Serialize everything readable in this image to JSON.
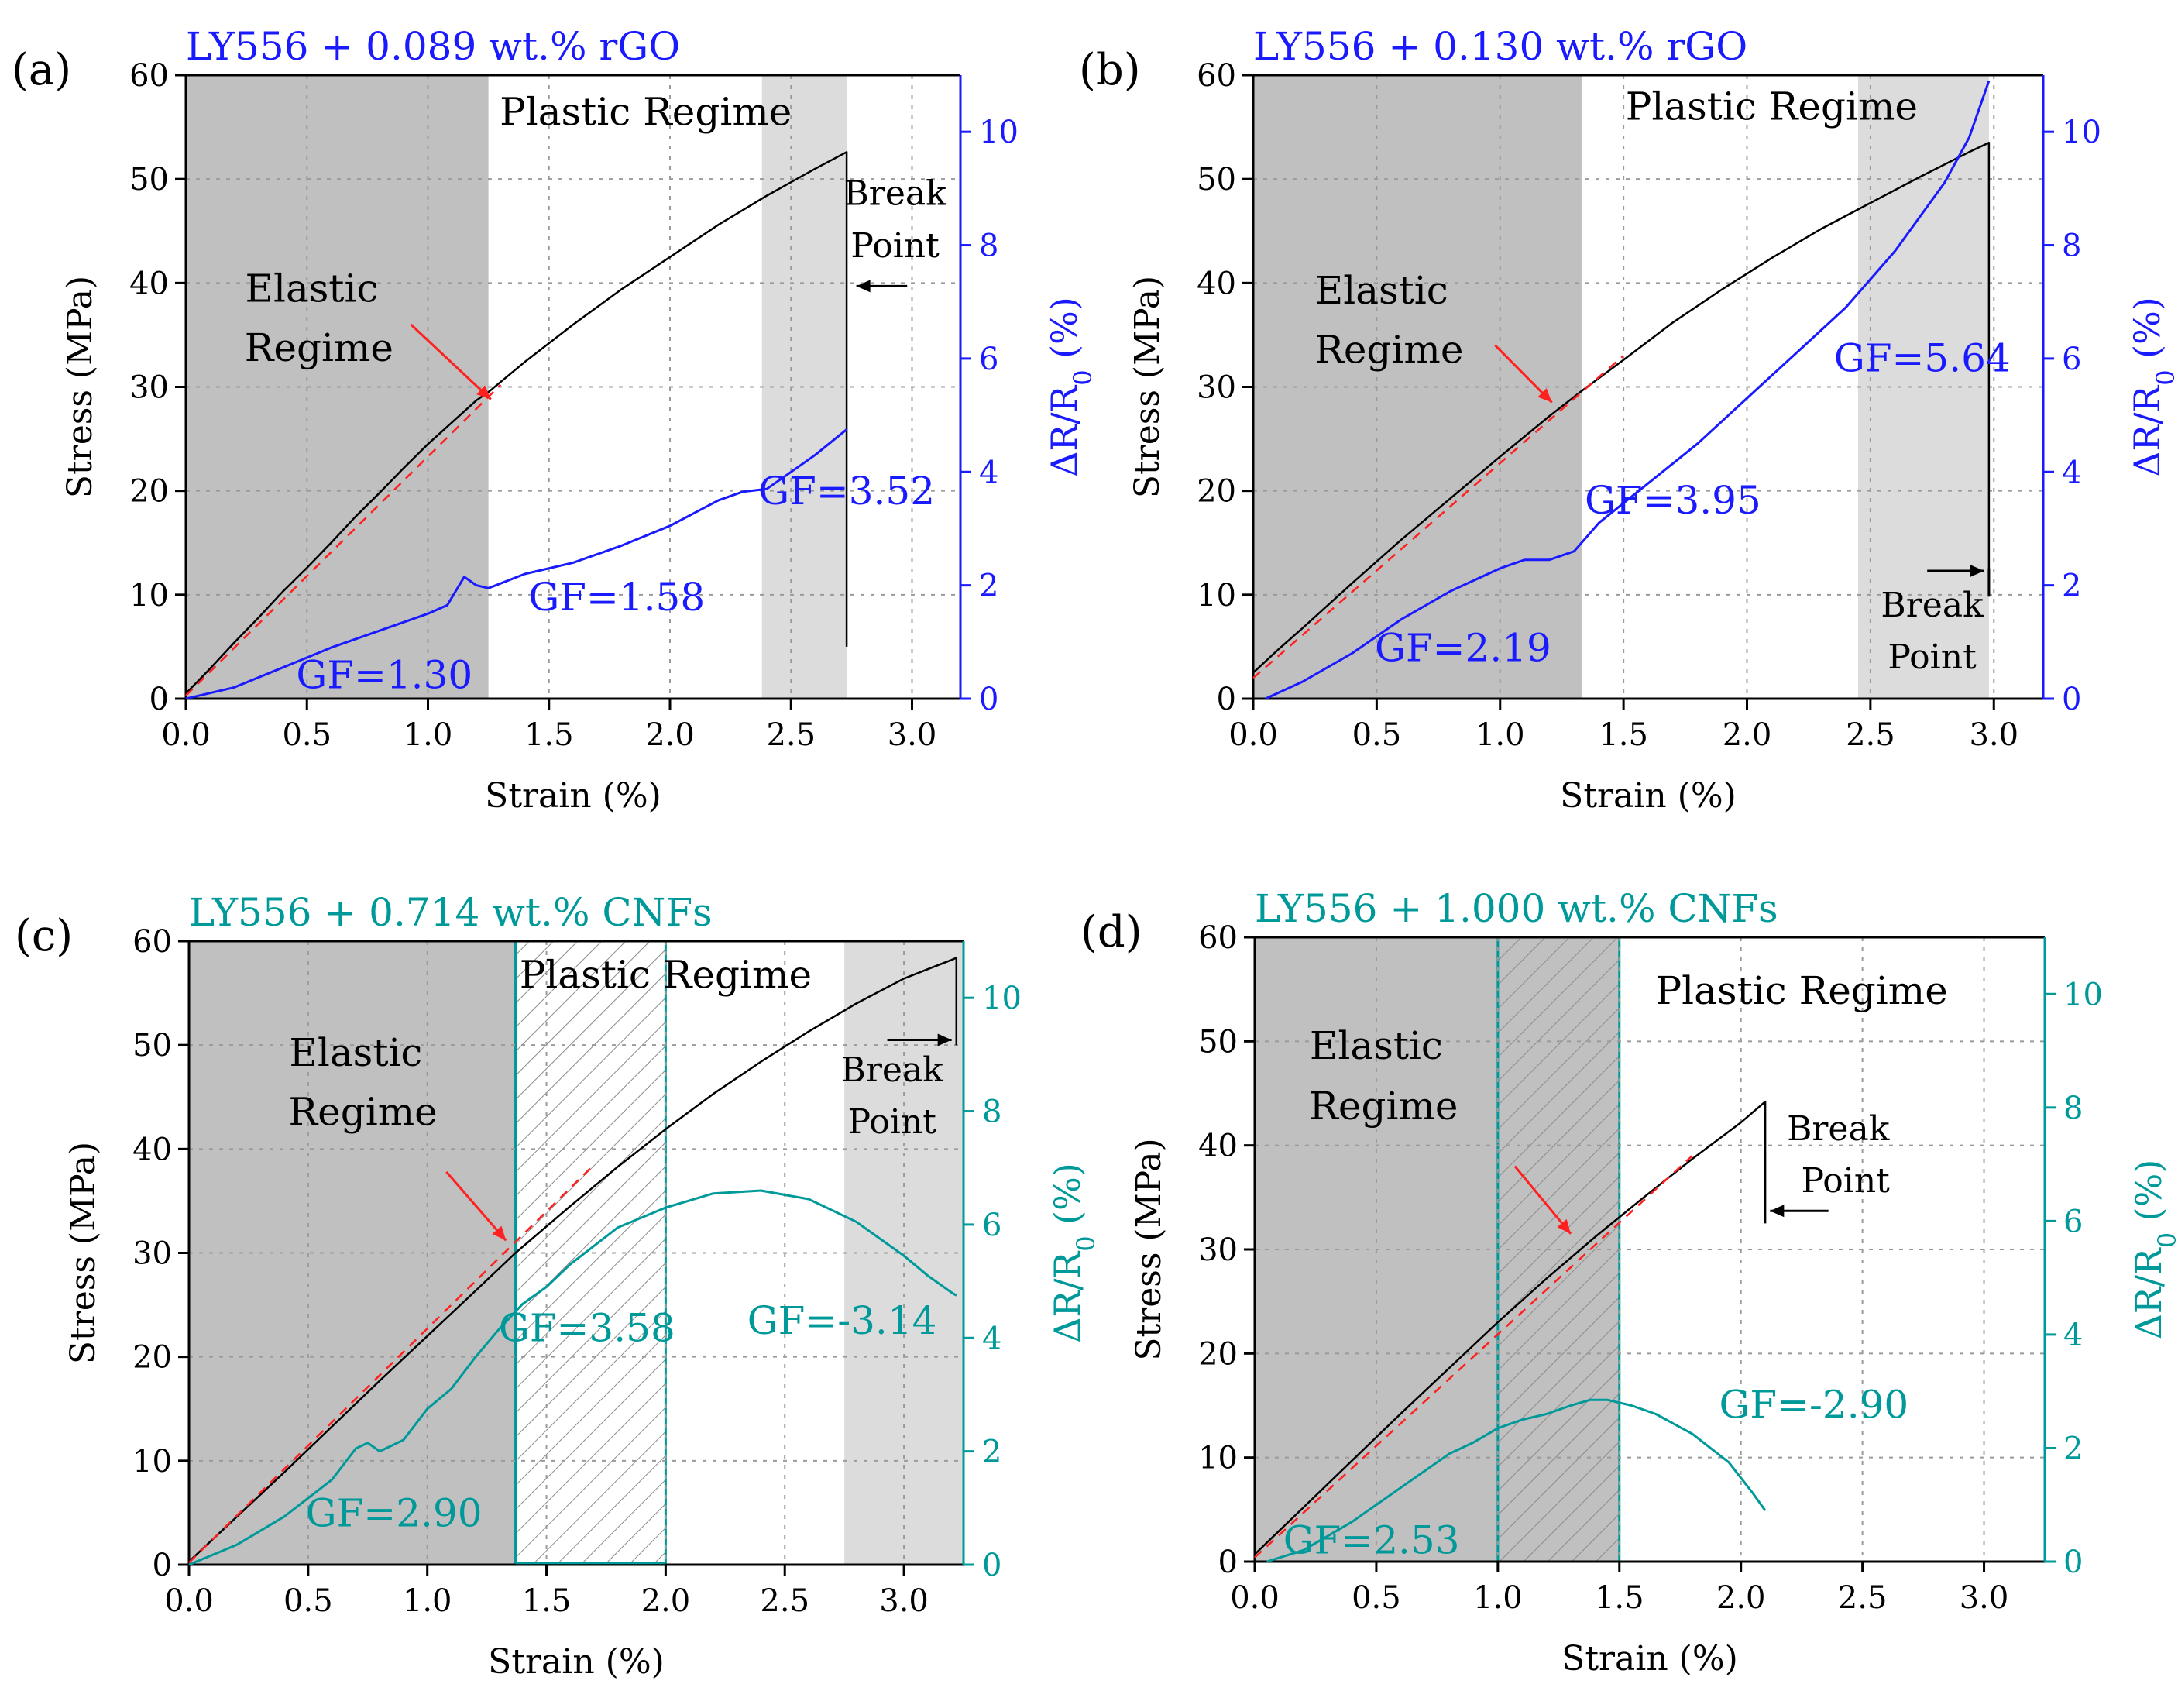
{
  "figure": {
    "colors": {
      "stress": "#000000",
      "rgo": "#1a1aff",
      "cnf": "#00999a",
      "fit": "#ff2020",
      "shade_dark": "#c0c0c0",
      "shade_light": "#dcdcdc",
      "arrow_red": "#ff2020"
    }
  },
  "chart_data": [
    {
      "type": "line",
      "panel_label": "(a)",
      "title": "LY556 + 0.089 wt.% rGO",
      "title_color_name": "rgo",
      "xlabel": "Strain (%)",
      "ylabel": "Stress (MPa)",
      "y2label": "ΔR/R",
      "y2label_sub": "0",
      "y2label_unit": " (%)",
      "xlim": [
        0,
        3.2
      ],
      "ylim": [
        0,
        60
      ],
      "y2lim": [
        0,
        11
      ],
      "xticks": [
        "0.0",
        "0.5",
        "1.0",
        "1.5",
        "2.0",
        "2.5",
        "3.0"
      ],
      "xtick_values": [
        0,
        0.5,
        1,
        1.5,
        2,
        2.5,
        3
      ],
      "yticks": [
        "0",
        "10",
        "20",
        "30",
        "40",
        "50",
        "60"
      ],
      "ytick_values": [
        0,
        10,
        20,
        30,
        40,
        50,
        60
      ],
      "y2ticks": [
        "0",
        "2",
        "4",
        "6",
        "8",
        "10"
      ],
      "y2tick_values": [
        0,
        2,
        4,
        6,
        8,
        10
      ],
      "regions": [
        {
          "x0": 0,
          "x1": 1.25,
          "shade": "dark",
          "hatch": false
        },
        {
          "x0": 2.38,
          "x1": 2.73,
          "shade": "light",
          "hatch": false
        }
      ],
      "series": [
        {
          "name": "Stress",
          "axis": "left",
          "color": "stress",
          "x": [
            0,
            0.1,
            0.2,
            0.3,
            0.4,
            0.5,
            0.6,
            0.7,
            0.8,
            0.9,
            1.0,
            1.1,
            1.2,
            1.25,
            1.4,
            1.6,
            1.8,
            2.0,
            2.2,
            2.4,
            2.6,
            2.73,
            2.73
          ],
          "y": [
            0.5,
            2.9,
            5.4,
            7.8,
            10.3,
            12.6,
            15.0,
            17.5,
            19.8,
            22.2,
            24.5,
            26.6,
            28.7,
            29.5,
            32.4,
            36.0,
            39.4,
            42.5,
            45.6,
            48.4,
            51.0,
            52.6,
            5
          ]
        },
        {
          "name": "Linear fit",
          "axis": "left",
          "color": "fit",
          "dashed": true,
          "x": [
            0,
            1.3
          ],
          "y": [
            0.3,
            30.2
          ]
        },
        {
          "name": "ΔR/R0",
          "axis": "right",
          "color": "rgo",
          "x": [
            0,
            0.2,
            0.4,
            0.6,
            0.8,
            1.0,
            1.08,
            1.15,
            1.2,
            1.25,
            1.4,
            1.6,
            1.8,
            2.0,
            2.2,
            2.3,
            2.4,
            2.5,
            2.6,
            2.73
          ],
          "y": [
            0,
            0.2,
            0.55,
            0.9,
            1.2,
            1.5,
            1.65,
            2.15,
            2.0,
            1.95,
            2.2,
            2.4,
            2.7,
            3.05,
            3.5,
            3.65,
            3.7,
            4.0,
            4.3,
            4.75
          ]
        }
      ],
      "annotations": [
        {
          "text": "Plastic Regime",
          "x": 1.9,
          "y": 55.2,
          "color": "stress",
          "size": 50
        },
        {
          "text": "Elastic",
          "x": 0.52,
          "y": 38.2,
          "color": "stress",
          "size": 50
        },
        {
          "text": "Regime",
          "x": 0.55,
          "y": 32.5,
          "color": "stress",
          "size": 50
        },
        {
          "text": "Break",
          "x": 2.93,
          "y": 47.5,
          "color": "stress",
          "size": 44
        },
        {
          "text": "Point",
          "x": 2.93,
          "y": 42.5,
          "color": "stress",
          "size": 44
        },
        {
          "text": "GF=1.30",
          "x": 0.82,
          "y": 1.0,
          "color": "rgo",
          "size": 50
        },
        {
          "text": "GF=1.58",
          "x": 1.78,
          "y": 8.5,
          "color": "rgo",
          "size": 50
        },
        {
          "text": "GF=3.52",
          "x": 2.73,
          "y": 18.7,
          "color": "rgo",
          "size": 50
        }
      ],
      "arrows": [
        {
          "x0": 0.93,
          "y0": 36.0,
          "x1": 1.26,
          "y1": 28.8,
          "color": "arrow_red"
        },
        {
          "x0": 2.98,
          "y0": 39.7,
          "x1": 2.77,
          "y1": 39.7,
          "color": "stress"
        }
      ]
    },
    {
      "type": "line",
      "panel_label": "(b)",
      "title": "LY556 + 0.130 wt.% rGO",
      "title_color_name": "rgo",
      "xlabel": "Strain (%)",
      "ylabel": "Stress (MPa)",
      "y2label": "ΔR/R",
      "y2label_sub": "0",
      "y2label_unit": " (%)",
      "xlim": [
        0,
        3.2
      ],
      "ylim": [
        0,
        60
      ],
      "y2lim": [
        0,
        11
      ],
      "xticks": [
        "0.0",
        "0.5",
        "1.0",
        "1.5",
        "2.0",
        "2.5",
        "3.0"
      ],
      "xtick_values": [
        0,
        0.5,
        1,
        1.5,
        2,
        2.5,
        3
      ],
      "yticks": [
        "0",
        "10",
        "20",
        "30",
        "40",
        "50",
        "60"
      ],
      "ytick_values": [
        0,
        10,
        20,
        30,
        40,
        50,
        60
      ],
      "y2ticks": [
        "0",
        "2",
        "4",
        "6",
        "8",
        "10"
      ],
      "y2tick_values": [
        0,
        2,
        4,
        6,
        8,
        10
      ],
      "regions": [
        {
          "x0": 0,
          "x1": 1.33,
          "shade": "dark",
          "hatch": false
        },
        {
          "x0": 2.45,
          "x1": 2.98,
          "shade": "light",
          "hatch": false
        }
      ],
      "series": [
        {
          "name": "Stress",
          "axis": "left",
          "color": "stress",
          "x": [
            0,
            0.1,
            0.2,
            0.4,
            0.6,
            0.8,
            1.0,
            1.2,
            1.33,
            1.5,
            1.7,
            1.9,
            2.1,
            2.3,
            2.5,
            2.7,
            2.9,
            2.98,
            2.98
          ],
          "y": [
            2.5,
            4.7,
            6.8,
            11.1,
            15.3,
            19.3,
            23.3,
            27.2,
            29.6,
            32.6,
            36.2,
            39.4,
            42.4,
            45.2,
            47.7,
            50.2,
            52.6,
            53.5,
            10
          ]
        },
        {
          "name": "Linear fit",
          "axis": "left",
          "color": "fit",
          "dashed": true,
          "x": [
            0,
            1.5
          ],
          "y": [
            2.0,
            33.0
          ]
        },
        {
          "name": "ΔR/R0",
          "axis": "right",
          "color": "rgo",
          "x": [
            0.05,
            0.2,
            0.4,
            0.6,
            0.8,
            1.0,
            1.1,
            1.2,
            1.3,
            1.4,
            1.6,
            1.8,
            2.0,
            2.2,
            2.4,
            2.5,
            2.6,
            2.7,
            2.8,
            2.9,
            2.98
          ],
          "y": [
            0,
            0.3,
            0.8,
            1.4,
            1.9,
            2.3,
            2.45,
            2.45,
            2.6,
            3.1,
            3.8,
            4.5,
            5.3,
            6.1,
            6.9,
            7.4,
            7.9,
            8.5,
            9.1,
            9.9,
            10.9
          ]
        },
        {
          "name": "Break tick",
          "axis": "right",
          "color": "stress",
          "x": [
            2.98,
            2.98
          ],
          "y": [
            2.3,
            1.8
          ]
        }
      ],
      "annotations": [
        {
          "text": "Plastic Regime",
          "x": 2.1,
          "y": 55.7,
          "color": "stress",
          "size": 50
        },
        {
          "text": "Elastic",
          "x": 0.52,
          "y": 38.0,
          "color": "stress",
          "size": 50
        },
        {
          "text": "Regime",
          "x": 0.55,
          "y": 32.3,
          "color": "stress",
          "size": 50
        },
        {
          "text": "Break",
          "x": 2.75,
          "y": 7.9,
          "color": "stress",
          "size": 44
        },
        {
          "text": "Point",
          "x": 2.75,
          "y": 2.9,
          "color": "stress",
          "size": 44
        },
        {
          "text": "GF=2.19",
          "x": 0.85,
          "y": 3.6,
          "color": "rgo",
          "size": 50
        },
        {
          "text": "GF=3.95",
          "x": 1.7,
          "y": 17.8,
          "color": "rgo",
          "size": 50
        },
        {
          "text": "GF=5.64",
          "x": 2.71,
          "y": 31.5,
          "color": "rgo",
          "size": 50
        }
      ],
      "arrows": [
        {
          "x0": 0.98,
          "y0": 34.0,
          "x1": 1.21,
          "y1": 28.5,
          "color": "arrow_red"
        },
        {
          "x0": 2.73,
          "y0": 12.3,
          "x1": 2.96,
          "y1": 12.3,
          "color": "stress"
        }
      ]
    },
    {
      "type": "line",
      "panel_label": "(c)",
      "title": "LY556 + 0.714 wt.% CNFs",
      "title_color_name": "cnf",
      "xlabel": "Strain (%)",
      "ylabel": "Stress (MPa)",
      "y2label": "ΔR/R",
      "y2label_sub": "0",
      "y2label_unit": " (%)",
      "xlim": [
        0,
        3.25
      ],
      "ylim": [
        0,
        60
      ],
      "y2lim": [
        0,
        11
      ],
      "xticks": [
        "0.0",
        "0.5",
        "1.0",
        "1.5",
        "2.0",
        "2.5",
        "3.0"
      ],
      "xtick_values": [
        0,
        0.5,
        1,
        1.5,
        2,
        2.5,
        3
      ],
      "yticks": [
        "0",
        "10",
        "20",
        "30",
        "40",
        "50",
        "60"
      ],
      "ytick_values": [
        0,
        10,
        20,
        30,
        40,
        50,
        60
      ],
      "y2ticks": [
        "0",
        "2",
        "4",
        "6",
        "8",
        "10"
      ],
      "y2tick_values": [
        0,
        2,
        4,
        6,
        8,
        10
      ],
      "regions": [
        {
          "x0": 0,
          "x1": 1.37,
          "shade": "dark",
          "hatch": false
        },
        {
          "x0": 1.37,
          "x1": 2.0,
          "shade": "none",
          "hatch": true
        },
        {
          "x0": 2.75,
          "x1": 3.25,
          "shade": "light",
          "hatch": false
        }
      ],
      "series": [
        {
          "name": "Stress",
          "axis": "left",
          "color": "stress",
          "x": [
            0,
            0.2,
            0.4,
            0.6,
            0.8,
            1.0,
            1.2,
            1.37,
            1.6,
            1.8,
            2.0,
            2.2,
            2.4,
            2.6,
            2.8,
            3.0,
            3.1,
            3.2,
            3.22,
            3.22
          ],
          "y": [
            0.3,
            4.6,
            8.9,
            13.3,
            17.7,
            22.0,
            26.3,
            30.0,
            34.5,
            38.3,
            41.9,
            45.3,
            48.4,
            51.3,
            54.0,
            56.4,
            57.3,
            58.2,
            58.4,
            50.0
          ]
        },
        {
          "name": "Linear fit",
          "axis": "left",
          "color": "fit",
          "dashed": true,
          "x": [
            0,
            1.7
          ],
          "y": [
            0.2,
            38.5
          ]
        },
        {
          "name": "ΔR/R0",
          "axis": "right",
          "color": "cnf",
          "x": [
            0,
            0.2,
            0.4,
            0.6,
            0.7,
            0.75,
            0.8,
            0.9,
            1.0,
            1.1,
            1.2,
            1.3,
            1.4,
            1.5,
            1.6,
            1.8,
            2.0,
            2.2,
            2.4,
            2.6,
            2.8,
            3.0,
            3.1,
            3.2,
            3.22
          ],
          "y": [
            0,
            0.35,
            0.85,
            1.5,
            2.05,
            2.15,
            2.0,
            2.2,
            2.75,
            3.1,
            3.65,
            4.15,
            4.6,
            4.9,
            5.3,
            5.95,
            6.3,
            6.55,
            6.6,
            6.45,
            6.05,
            5.45,
            5.1,
            4.8,
            4.75
          ]
        },
        {
          "name": "ΔR/R0 baseline",
          "axis": "right",
          "color": "cnf",
          "x": [
            1.37,
            2.0
          ],
          "y": [
            0.03,
            0.03
          ]
        }
      ],
      "annotations": [
        {
          "text": "Plastic Regime",
          "x": 2.0,
          "y": 55.5,
          "color": "stress",
          "size": 50
        },
        {
          "text": "Elastic",
          "x": 0.7,
          "y": 48.0,
          "color": "stress",
          "size": 50
        },
        {
          "text": "Regime",
          "x": 0.73,
          "y": 42.3,
          "color": "stress",
          "size": 50
        },
        {
          "text": "Break",
          "x": 2.95,
          "y": 46.5,
          "color": "stress",
          "size": 44
        },
        {
          "text": "Point",
          "x": 2.95,
          "y": 41.5,
          "color": "stress",
          "size": 44
        },
        {
          "text": "GF=2.90",
          "x": 0.86,
          "y": 3.7,
          "color": "cnf",
          "size": 50
        },
        {
          "text": "GF=3.58",
          "x": 1.67,
          "y": 21.5,
          "color": "cnf",
          "size": 50
        },
        {
          "text": "GF=-3.14",
          "x": 2.74,
          "y": 22.2,
          "color": "cnf",
          "size": 50
        }
      ],
      "arrows": [
        {
          "x0": 1.08,
          "y0": 37.8,
          "x1": 1.33,
          "y1": 31.2,
          "color": "arrow_red"
        },
        {
          "x0": 2.93,
          "y0": 50.5,
          "x1": 3.2,
          "y1": 50.5,
          "color": "stress"
        }
      ]
    },
    {
      "type": "line",
      "panel_label": "(d)",
      "title": "LY556 + 1.000 wt.% CNFs",
      "title_color_name": "cnf",
      "xlabel": "Strain (%)",
      "ylabel": "Stress (MPa)",
      "y2label": "ΔR/R",
      "y2label_sub": "0",
      "y2label_unit": " (%)",
      "xlim": [
        0,
        3.25
      ],
      "ylim": [
        0,
        60
      ],
      "y2lim": [
        0,
        11
      ],
      "xticks": [
        "0.0",
        "0.5",
        "1.0",
        "1.5",
        "2.0",
        "2.5",
        "3.0"
      ],
      "xtick_values": [
        0,
        0.5,
        1,
        1.5,
        2,
        2.5,
        3
      ],
      "yticks": [
        "0",
        "10",
        "20",
        "30",
        "40",
        "50",
        "60"
      ],
      "ytick_values": [
        0,
        10,
        20,
        30,
        40,
        50,
        60
      ],
      "y2ticks": [
        "0",
        "2",
        "4",
        "6",
        "8",
        "10"
      ],
      "y2tick_values": [
        0,
        2,
        4,
        6,
        8,
        10
      ],
      "regions": [
        {
          "x0": 0,
          "x1": 1.0,
          "shade": "dark",
          "hatch": false
        },
        {
          "x0": 1.0,
          "x1": 1.5,
          "shade": "dark",
          "hatch": true
        }
      ],
      "series": [
        {
          "name": "Stress",
          "axis": "left",
          "color": "stress",
          "x": [
            0,
            0.2,
            0.4,
            0.6,
            0.8,
            1.0,
            1.2,
            1.4,
            1.5,
            1.6,
            1.8,
            2.0,
            2.1,
            2.1
          ],
          "y": [
            0.7,
            5.2,
            9.7,
            14.2,
            18.6,
            23.0,
            27.2,
            31.2,
            33.1,
            35.0,
            38.7,
            42.2,
            44.2,
            32.5
          ]
        },
        {
          "name": "Linear fit",
          "axis": "left",
          "color": "fit",
          "dashed": true,
          "x": [
            0,
            1.8
          ],
          "y": [
            0.4,
            39.0
          ]
        },
        {
          "name": "ΔR/R0",
          "axis": "right",
          "color": "cnf",
          "x": [
            0.05,
            0.2,
            0.4,
            0.6,
            0.8,
            0.9,
            1.0,
            1.1,
            1.2,
            1.3,
            1.38,
            1.45,
            1.55,
            1.65,
            1.8,
            1.95,
            2.05,
            2.1
          ],
          "y": [
            0,
            0.2,
            0.7,
            1.3,
            1.9,
            2.1,
            2.35,
            2.5,
            2.6,
            2.75,
            2.85,
            2.85,
            2.75,
            2.6,
            2.25,
            1.75,
            1.2,
            0.9
          ]
        }
      ],
      "annotations": [
        {
          "text": "Plastic Regime",
          "x": 2.25,
          "y": 53.6,
          "color": "stress",
          "size": 50
        },
        {
          "text": "Elastic",
          "x": 0.5,
          "y": 48.3,
          "color": "stress",
          "size": 50
        },
        {
          "text": "Regime",
          "x": 0.53,
          "y": 42.5,
          "color": "stress",
          "size": 50
        },
        {
          "text": "Break",
          "x": 2.4,
          "y": 40.5,
          "color": "stress",
          "size": 44
        },
        {
          "text": "Point",
          "x": 2.43,
          "y": 35.5,
          "color": "stress",
          "size": 44
        },
        {
          "text": "GF=2.53",
          "x": 0.48,
          "y": 0.8,
          "color": "cnf",
          "size": 50
        },
        {
          "text": "GF=-2.90",
          "x": 2.3,
          "y": 13.8,
          "color": "cnf",
          "size": 50
        }
      ],
      "arrows": [
        {
          "x0": 1.07,
          "y0": 38.0,
          "x1": 1.3,
          "y1": 31.5,
          "color": "arrow_red"
        },
        {
          "x0": 2.36,
          "y0": 33.7,
          "x1": 2.12,
          "y1": 33.7,
          "color": "stress"
        }
      ]
    }
  ]
}
